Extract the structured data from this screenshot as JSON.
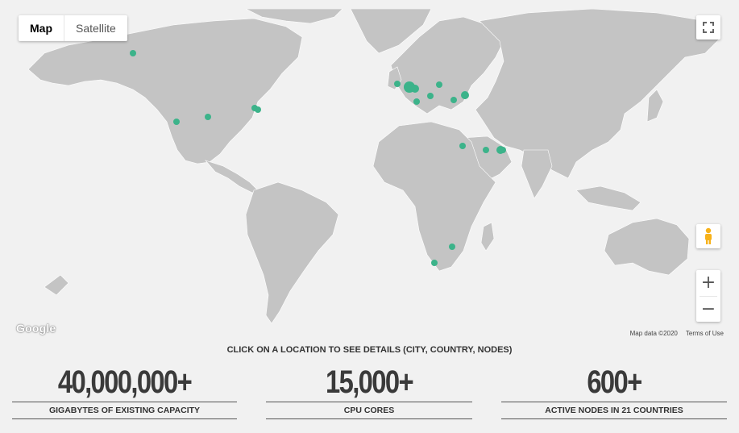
{
  "map": {
    "type_buttons": [
      {
        "label": "Map",
        "active": true
      },
      {
        "label": "Satellite",
        "active": false
      }
    ],
    "google_logo": "Google",
    "attribution": {
      "map_data": "Map data ©2020",
      "terms": "Terms of Use"
    },
    "zoom_in": "+",
    "zoom_out": "−",
    "land_color": "#c4c4c4",
    "water_color": "#f1f1f1",
    "marker_color": "#3cb38a",
    "markers": [
      "Alaska",
      "Western US",
      "Central US",
      "Great Lakes A",
      "Great Lakes B",
      "UK",
      "Netherlands",
      "Germany",
      "Germany South",
      "Switzerland",
      "Poland",
      "Slovakia",
      "Ukraine",
      "Ukraine East",
      "Egypt",
      "Saudi Arabia",
      "UAE",
      "UAE East",
      "South Africa North",
      "Cape Town"
    ]
  },
  "hint": "CLICK ON A LOCATION TO SEE DETAILS (CITY, COUNTRY, NODES)",
  "stats": [
    {
      "value": "40,000,000+",
      "label": "GIGABYTES OF EXISTING CAPACITY"
    },
    {
      "value": "15,000+",
      "label": "CPU CORES"
    },
    {
      "value": "600+",
      "label": "ACTIVE NODES IN 21 COUNTRIES"
    }
  ]
}
